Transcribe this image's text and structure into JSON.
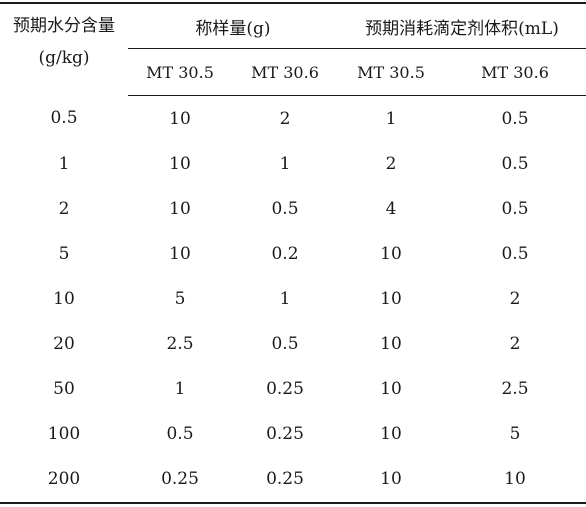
{
  "table": {
    "header": {
      "row_label_line1": "预期水分含量",
      "row_label_line2": "(g/kg)",
      "group_weight": "称样量(g)",
      "group_volume": "预期消耗滴定剂体积(mL)",
      "sub_headers": [
        "MT 30.5",
        "MT 30.6",
        "MT 30.5",
        "MT 30.6"
      ]
    },
    "rows": [
      [
        "0.5",
        "10",
        "2",
        "1",
        "0.5"
      ],
      [
        "1",
        "10",
        "1",
        "2",
        "0.5"
      ],
      [
        "2",
        "10",
        "0.5",
        "4",
        "0.5"
      ],
      [
        "5",
        "10",
        "0.2",
        "10",
        "0.5"
      ],
      [
        "10",
        "5",
        "1",
        "10",
        "2"
      ],
      [
        "20",
        "2.5",
        "0.5",
        "10",
        "2"
      ],
      [
        "50",
        "1",
        "0.25",
        "10",
        "2.5"
      ],
      [
        "100",
        "0.5",
        "0.25",
        "10",
        "5"
      ],
      [
        "200",
        "0.25",
        "0.25",
        "10",
        "10"
      ]
    ]
  }
}
